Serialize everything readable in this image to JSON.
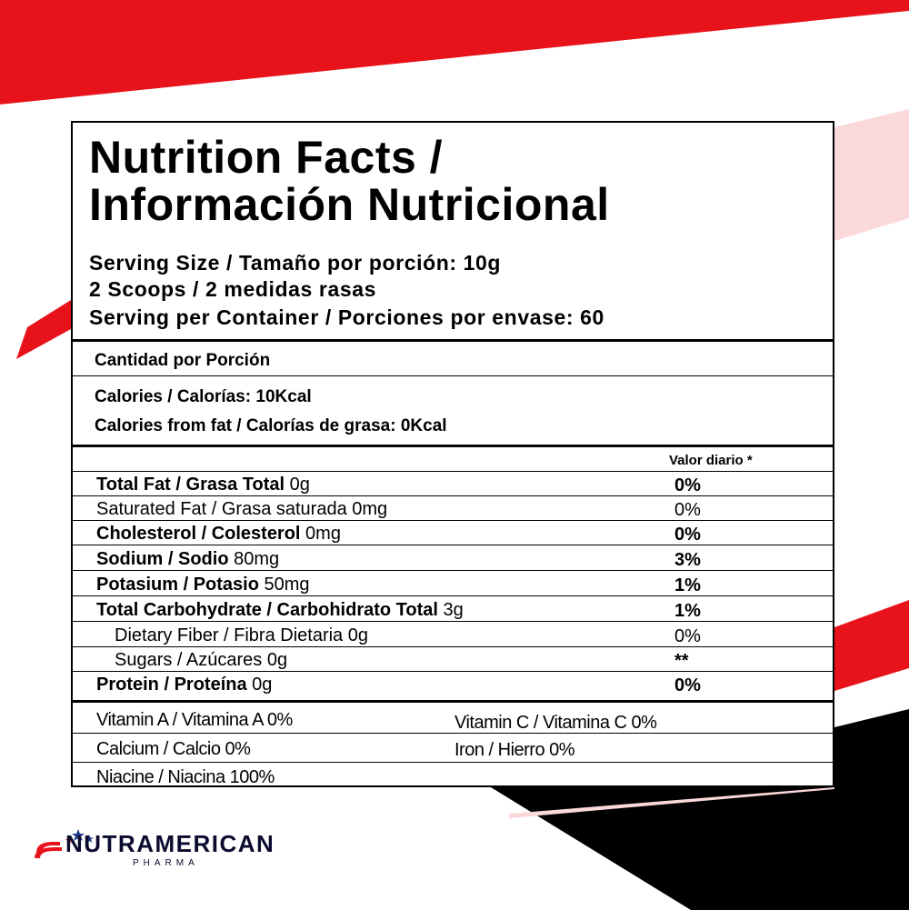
{
  "colors": {
    "accent_red": "#e8121b",
    "black": "#000000",
    "logo_navy": "#0a0a2e",
    "logo_blue": "#1d3a8a"
  },
  "title": {
    "line1": "Nutrition Facts /",
    "line2": "Información Nutricional"
  },
  "serving": {
    "size": "Serving Size / Tamaño por porción: 10g",
    "scoops": "2 Scoops / 2 medidas rasas",
    "per_container": "Serving per Container / Porciones por envase: 60"
  },
  "amount": {
    "label": "Cantidad por Porción",
    "calories": "Calories / Calorías: 10Kcal",
    "calories_fat": "Calories from fat / Calorías de grasa: 0Kcal"
  },
  "daily_value_header": "Valor diario *",
  "nutrients": [
    {
      "name": "Total Fat / Grasa Total",
      "amount": " 0g",
      "dv": "0%"
    },
    {
      "name": "Saturated Fat / Grasa saturada  0mg",
      "amount": "",
      "dv": "0%"
    },
    {
      "name": "Cholesterol / Colesterol",
      "amount": " 0mg",
      "dv": "0%"
    },
    {
      "name": "Sodium / Sodio",
      "amount": " 80mg",
      "dv": "3%"
    },
    {
      "name": "Potasium / Potasio",
      "amount": " 50mg",
      "dv": "1%"
    },
    {
      "name": "Total Carbohydrate / Carbohidrato Total",
      "amount": " 3g",
      "dv": "1%"
    },
    {
      "name": "Dietary Fiber / Fibra Dietaria 0g",
      "amount": "",
      "dv": "0%"
    },
    {
      "name": "Sugars / Azúcares 0g",
      "amount": "",
      "dv": "**"
    },
    {
      "name": "Protein / Proteína",
      "amount": " 0g",
      "dv": "0%"
    }
  ],
  "vitamins": {
    "vitamin_a": "Vitamin A / Vitamina A 0%",
    "vitamin_c": "Vitamin C / Vitamina C 0%",
    "calcium": "Calcium / Calcio 0%",
    "iron": "Iron / Hierro 0%",
    "niacine": "Niacine / Niacina  100%"
  },
  "brand": {
    "name": "NUTRAMERICAN",
    "sub": "PHARMA",
    "icon": "star-flag-icon"
  }
}
